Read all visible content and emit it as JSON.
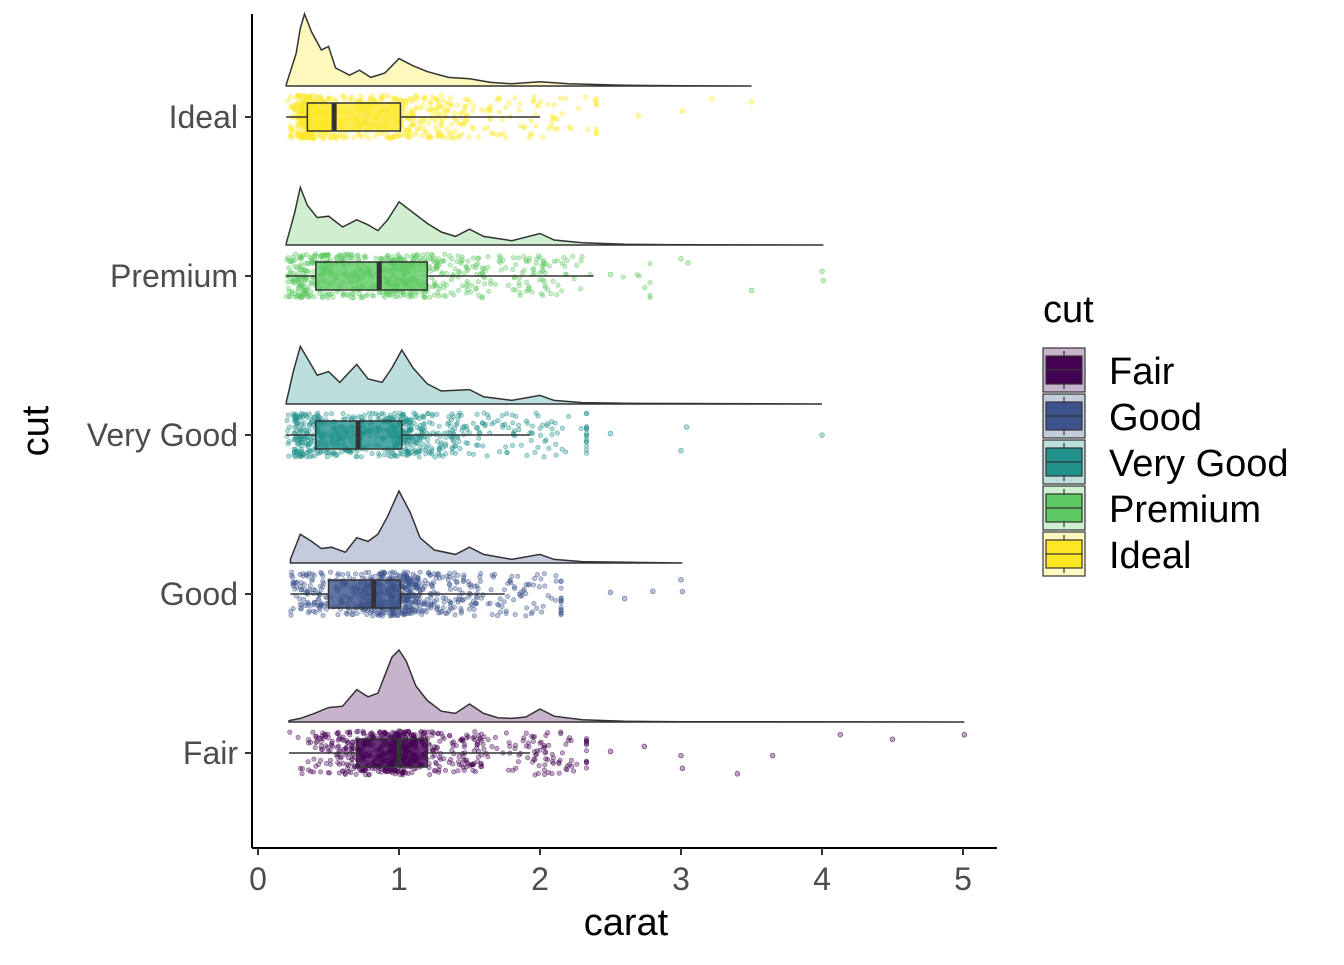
{
  "chart_data": {
    "type": "raincloud",
    "xlabel": "carat",
    "ylabel": "cut",
    "xlim": [
      -0.05,
      5.25
    ],
    "x_ticks": [
      0,
      1,
      2,
      3,
      4,
      5
    ],
    "categories": [
      "Ideal",
      "Premium",
      "Very Good",
      "Good",
      "Fair"
    ],
    "legend": {
      "title": "cut",
      "position": "right",
      "entries": [
        "Fair",
        "Good",
        "Very Good",
        "Premium",
        "Ideal"
      ]
    },
    "series": [
      {
        "name": "Ideal",
        "color": "#FDE725",
        "box": {
          "whisker_low": 0.2,
          "q1": 0.35,
          "median": 0.54,
          "q3": 1.01,
          "whisker_high": 2.0
        },
        "max": 3.5,
        "density": [
          [
            0.2,
            0.02
          ],
          [
            0.27,
            0.45
          ],
          [
            0.3,
            0.8
          ],
          [
            0.33,
            1.0
          ],
          [
            0.38,
            0.75
          ],
          [
            0.45,
            0.5
          ],
          [
            0.5,
            0.55
          ],
          [
            0.55,
            0.25
          ],
          [
            0.65,
            0.15
          ],
          [
            0.72,
            0.22
          ],
          [
            0.8,
            0.12
          ],
          [
            0.9,
            0.18
          ],
          [
            1.0,
            0.38
          ],
          [
            1.1,
            0.28
          ],
          [
            1.2,
            0.2
          ],
          [
            1.35,
            0.12
          ],
          [
            1.5,
            0.1
          ],
          [
            1.65,
            0.05
          ],
          [
            1.8,
            0.03
          ],
          [
            2.0,
            0.06
          ],
          [
            2.2,
            0.03
          ],
          [
            2.6,
            0.01
          ],
          [
            3.0,
            0.004
          ],
          [
            3.5,
            0.0
          ]
        ],
        "outliers": [
          2.7,
          3.01,
          3.22,
          3.5
        ]
      },
      {
        "name": "Premium",
        "color": "#5EC962",
        "box": {
          "whisker_low": 0.2,
          "q1": 0.41,
          "median": 0.86,
          "q3": 1.2,
          "whisker_high": 2.38
        },
        "max": 4.01,
        "density": [
          [
            0.2,
            0.02
          ],
          [
            0.26,
            0.45
          ],
          [
            0.3,
            0.8
          ],
          [
            0.35,
            0.55
          ],
          [
            0.42,
            0.38
          ],
          [
            0.5,
            0.4
          ],
          [
            0.6,
            0.25
          ],
          [
            0.7,
            0.35
          ],
          [
            0.78,
            0.28
          ],
          [
            0.85,
            0.2
          ],
          [
            0.92,
            0.35
          ],
          [
            1.0,
            0.6
          ],
          [
            1.1,
            0.45
          ],
          [
            1.2,
            0.3
          ],
          [
            1.3,
            0.18
          ],
          [
            1.4,
            0.12
          ],
          [
            1.5,
            0.22
          ],
          [
            1.6,
            0.12
          ],
          [
            1.8,
            0.06
          ],
          [
            2.0,
            0.16
          ],
          [
            2.1,
            0.07
          ],
          [
            2.3,
            0.03
          ],
          [
            2.6,
            0.01
          ],
          [
            3.0,
            0.004
          ],
          [
            4.01,
            0.0
          ]
        ],
        "outliers": [
          2.5,
          3.0,
          3.05,
          3.5,
          4.0,
          4.01
        ]
      },
      {
        "name": "Very Good",
        "color": "#21918C",
        "box": {
          "whisker_low": 0.2,
          "q1": 0.41,
          "median": 0.71,
          "q3": 1.02,
          "whisker_high": 1.93
        },
        "max": 4.0,
        "density": [
          [
            0.2,
            0.02
          ],
          [
            0.25,
            0.45
          ],
          [
            0.3,
            0.8
          ],
          [
            0.36,
            0.6
          ],
          [
            0.42,
            0.4
          ],
          [
            0.5,
            0.45
          ],
          [
            0.58,
            0.3
          ],
          [
            0.7,
            0.55
          ],
          [
            0.78,
            0.35
          ],
          [
            0.88,
            0.3
          ],
          [
            0.95,
            0.5
          ],
          [
            1.02,
            0.75
          ],
          [
            1.1,
            0.5
          ],
          [
            1.2,
            0.28
          ],
          [
            1.3,
            0.18
          ],
          [
            1.5,
            0.2
          ],
          [
            1.6,
            0.1
          ],
          [
            1.8,
            0.05
          ],
          [
            2.0,
            0.12
          ],
          [
            2.1,
            0.05
          ],
          [
            2.3,
            0.02
          ],
          [
            2.6,
            0.01
          ],
          [
            4.0,
            0.0
          ]
        ],
        "outliers": [
          2.5,
          3.0,
          3.04,
          4.0
        ]
      },
      {
        "name": "Good",
        "color": "#3B528B",
        "box": {
          "whisker_low": 0.23,
          "q1": 0.5,
          "median": 0.82,
          "q3": 1.01,
          "whisker_high": 1.75
        },
        "max": 3.01,
        "density": [
          [
            0.23,
            0.05
          ],
          [
            0.3,
            0.4
          ],
          [
            0.38,
            0.3
          ],
          [
            0.45,
            0.2
          ],
          [
            0.52,
            0.22
          ],
          [
            0.62,
            0.15
          ],
          [
            0.7,
            0.35
          ],
          [
            0.78,
            0.3
          ],
          [
            0.85,
            0.4
          ],
          [
            0.92,
            0.65
          ],
          [
            1.0,
            1.0
          ],
          [
            1.08,
            0.7
          ],
          [
            1.15,
            0.35
          ],
          [
            1.25,
            0.18
          ],
          [
            1.4,
            0.12
          ],
          [
            1.5,
            0.22
          ],
          [
            1.6,
            0.12
          ],
          [
            1.8,
            0.05
          ],
          [
            2.0,
            0.12
          ],
          [
            2.1,
            0.05
          ],
          [
            2.3,
            0.02
          ],
          [
            3.01,
            0.0
          ]
        ],
        "outliers": [
          2.5,
          2.6,
          2.8,
          3.0,
          3.01
        ]
      },
      {
        "name": "Fair",
        "color": "#440154",
        "box": {
          "whisker_low": 0.22,
          "q1": 0.7,
          "median": 1.0,
          "q3": 1.2,
          "whisker_high": 1.93
        },
        "max": 5.01,
        "density": [
          [
            0.22,
            0.02
          ],
          [
            0.3,
            0.05
          ],
          [
            0.4,
            0.12
          ],
          [
            0.5,
            0.2
          ],
          [
            0.6,
            0.22
          ],
          [
            0.7,
            0.45
          ],
          [
            0.78,
            0.35
          ],
          [
            0.85,
            0.4
          ],
          [
            0.9,
            0.65
          ],
          [
            0.95,
            0.9
          ],
          [
            1.0,
            1.0
          ],
          [
            1.05,
            0.85
          ],
          [
            1.12,
            0.5
          ],
          [
            1.2,
            0.3
          ],
          [
            1.3,
            0.15
          ],
          [
            1.4,
            0.12
          ],
          [
            1.5,
            0.25
          ],
          [
            1.6,
            0.12
          ],
          [
            1.7,
            0.06
          ],
          [
            1.8,
            0.05
          ],
          [
            1.9,
            0.07
          ],
          [
            2.0,
            0.18
          ],
          [
            2.1,
            0.08
          ],
          [
            2.3,
            0.03
          ],
          [
            2.6,
            0.01
          ],
          [
            3.0,
            0.004
          ],
          [
            5.01,
            0.0
          ]
        ],
        "outliers": [
          2.5,
          2.74,
          3.0,
          3.01,
          3.4,
          3.65,
          4.13,
          4.5,
          5.01
        ]
      }
    ]
  }
}
